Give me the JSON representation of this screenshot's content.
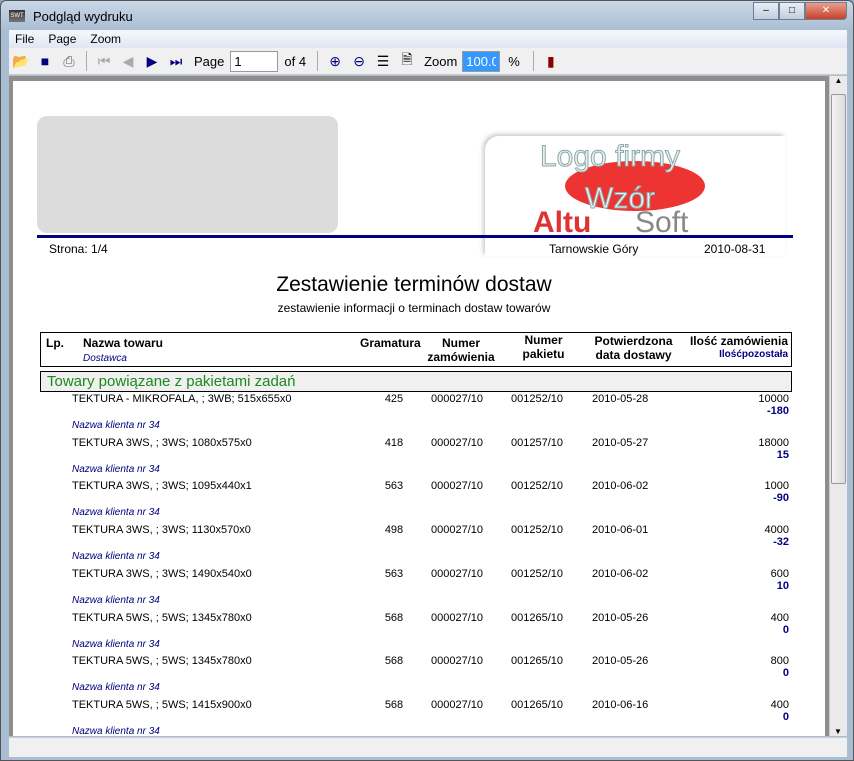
{
  "window": {
    "title": "Podgląd wydruku",
    "app_icon": "SWT"
  },
  "menu": [
    "File",
    "Page",
    "Zoom"
  ],
  "toolbar": {
    "page_label": "Page",
    "page_value": "1",
    "of_label": "of 4",
    "zoom_label": "Zoom",
    "zoom_value": "100.0",
    "percent": "%"
  },
  "report": {
    "logo_text": [
      "Logo firmy",
      "Wzór",
      "Altu",
      "Soft"
    ],
    "page_info": "Strona: 1/4",
    "city": "Tarnowskie Góry",
    "date": "2010-08-31",
    "title": "Zestawienie terminów dostaw",
    "subtitle": "zestawienie informacji o terminach dostaw towarów",
    "headers": {
      "lp": "Lp.",
      "name": "Nazwa towaru",
      "supplier": "Dostawca",
      "gram": "Gramatura",
      "order1": "Numer",
      "order2": "zamówienia",
      "pkg1": "Numer",
      "pkg2": "pakietu",
      "date1": "Potwierdzona",
      "date2": "data dostawy",
      "qty": "Ilość zamówienia",
      "remaining": "Ilośćpozostała"
    },
    "group": "Towary powiązane z pakietami zadań",
    "rows": [
      {
        "name": "TEKTURA - MIKROFALA, ; 3WB; 515x655x0",
        "gram": "425",
        "order": "000027/10",
        "pkg": "001252/10",
        "date": "2010-05-28",
        "qty": "10000",
        "rem": "-180",
        "client": "Nazwa klienta nr 34"
      },
      {
        "name": "TEKTURA 3WS, ; 3WS; 1080x575x0",
        "gram": "418",
        "order": "000027/10",
        "pkg": "001257/10",
        "date": "2010-05-27",
        "qty": "18000",
        "rem": "15",
        "client": "Nazwa klienta nr 34"
      },
      {
        "name": "TEKTURA 3WS, ; 3WS; 1095x440x1",
        "gram": "563",
        "order": "000027/10",
        "pkg": "001252/10",
        "date": "2010-06-02",
        "qty": "1000",
        "rem": "-90",
        "client": "Nazwa klienta nr 34"
      },
      {
        "name": "TEKTURA 3WS, ; 3WS; 1130x570x0",
        "gram": "498",
        "order": "000027/10",
        "pkg": "001252/10",
        "date": "2010-06-01",
        "qty": "4000",
        "rem": "-32",
        "client": "Nazwa klienta nr 34"
      },
      {
        "name": "TEKTURA 3WS, ; 3WS; 1490x540x0",
        "gram": "563",
        "order": "000027/10",
        "pkg": "001252/10",
        "date": "2010-06-02",
        "qty": "600",
        "rem": "10",
        "client": "Nazwa klienta nr 34"
      },
      {
        "name": "TEKTURA 5WS, ; 5WS; 1345x780x0",
        "gram": "568",
        "order": "000027/10",
        "pkg": "001265/10",
        "date": "2010-05-26",
        "qty": "400",
        "rem": "0",
        "client": "Nazwa klienta nr 34"
      },
      {
        "name": "TEKTURA 5WS, ; 5WS; 1345x780x0",
        "gram": "568",
        "order": "000027/10",
        "pkg": "001265/10",
        "date": "2010-05-26",
        "qty": "800",
        "rem": "0",
        "client": "Nazwa klienta nr 34"
      },
      {
        "name": "TEKTURA 5WS, ; 5WS; 1415x900x0",
        "gram": "568",
        "order": "000027/10",
        "pkg": "001265/10",
        "date": "2010-06-16",
        "qty": "400",
        "rem": "0",
        "client": "Nazwa klienta nr 34"
      }
    ]
  }
}
